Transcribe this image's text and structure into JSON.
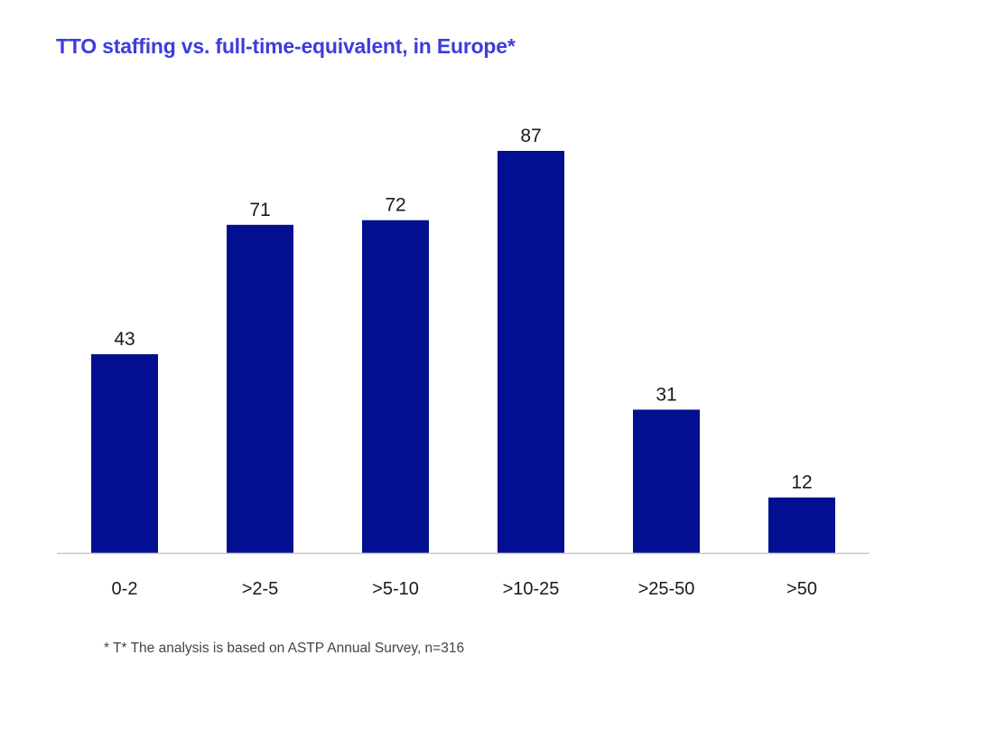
{
  "chart_data": {
    "type": "bar",
    "title": "TTO staffing vs. full-time-equivalent, in Europe*",
    "categories": [
      "0-2",
      ">2-5",
      ">5-10",
      ">10-25",
      ">25-50",
      ">50"
    ],
    "values": [
      43,
      71,
      72,
      87,
      31,
      12
    ],
    "data_labels": [
      "43",
      "71",
      "72",
      "87",
      "31",
      "12"
    ],
    "xlabel": "",
    "ylabel": "",
    "ylim": [
      0,
      87
    ],
    "y_axis_visible": false,
    "grid": false,
    "legend": "none",
    "bar_color": "#020f91",
    "title_color": "#3d3ddb",
    "baseline_color": "#c8c8c8"
  },
  "footnote": "* T* The analysis is based on ASTP Annual Survey, n=316"
}
